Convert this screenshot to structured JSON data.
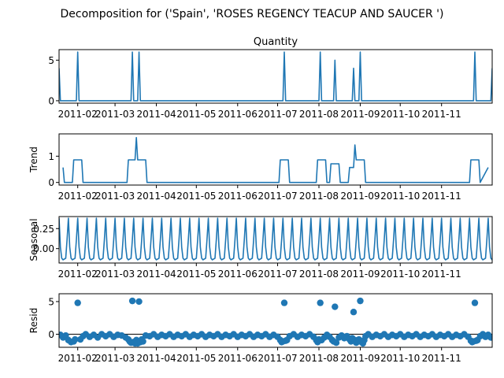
{
  "figure": {
    "suptitle": "Decomposition for ('Spain', 'ROSES REGENCY TEACUP AND SAUCER ')",
    "line_color": "#1f77b4",
    "x_tick_labels": [
      "2011-02",
      "2011-03",
      "2011-04",
      "2011-05",
      "2011-06",
      "2011-07",
      "2011-08",
      "2011-09",
      "2011-10",
      "2011-11"
    ],
    "x_tick_dates": [
      "2011-02-01",
      "2011-03-01",
      "2011-04-01",
      "2011-05-01",
      "2011-06-01",
      "2011-07-01",
      "2011-08-01",
      "2011-09-01",
      "2011-10-01",
      "2011-11-01"
    ],
    "x_range": [
      "2011-01-18",
      "2011-12-09"
    ]
  },
  "chart_data": [
    {
      "type": "line",
      "title": "Quantity",
      "ylabel": "",
      "ylim": [
        -0.3,
        6.3
      ],
      "yticks": [
        0,
        5
      ],
      "x_dates": [
        "2011-01-18",
        "2011-01-19",
        "2011-01-31",
        "2011-02-01",
        "2011-02-02",
        "2011-03-13",
        "2011-03-14",
        "2011-03-15",
        "2011-03-18",
        "2011-03-19",
        "2011-03-20",
        "2011-07-05",
        "2011-07-06",
        "2011-07-07",
        "2011-08-01",
        "2011-08-02",
        "2011-08-03",
        "2011-08-12",
        "2011-08-13",
        "2011-08-14",
        "2011-08-26",
        "2011-08-27",
        "2011-08-28",
        "2011-08-31",
        "2011-09-01",
        "2011-09-02",
        "2011-11-25",
        "2011-11-26",
        "2011-11-27",
        "2011-12-08",
        "2011-12-09"
      ],
      "values": [
        4,
        0,
        0,
        6,
        0,
        0,
        6,
        0,
        0,
        6,
        0,
        0,
        6,
        0,
        0,
        6,
        0,
        0,
        5,
        0,
        0,
        4,
        0,
        0,
        6,
        0,
        0,
        6,
        0,
        0,
        4
      ]
    },
    {
      "type": "line",
      "title": "",
      "ylabel": "Trend",
      "ylim": [
        -0.1,
        1.85
      ],
      "yticks": [
        0,
        1
      ],
      "x_dates": [
        "2011-01-21",
        "2011-01-22",
        "2011-01-28",
        "2011-01-29",
        "2011-02-04",
        "2011-02-05",
        "2011-03-10",
        "2011-03-11",
        "2011-03-16",
        "2011-03-17",
        "2011-03-18",
        "2011-03-19",
        "2011-03-24",
        "2011-03-25",
        "2011-07-02",
        "2011-07-03",
        "2011-07-09",
        "2011-07-10",
        "2011-07-30",
        "2011-07-31",
        "2011-08-06",
        "2011-08-07",
        "2011-08-09",
        "2011-08-10",
        "2011-08-16",
        "2011-08-17",
        "2011-08-23",
        "2011-08-24",
        "2011-08-27",
        "2011-08-28",
        "2011-08-29",
        "2011-08-30",
        "2011-09-04",
        "2011-09-05",
        "2011-11-22",
        "2011-11-23",
        "2011-11-29",
        "2011-11-30",
        "2011-12-06"
      ],
      "values": [
        0.57,
        0,
        0,
        0.86,
        0.86,
        0,
        0,
        0.86,
        0.86,
        1.71,
        0.86,
        0.86,
        0.86,
        0,
        0,
        0.86,
        0.86,
        0,
        0,
        0.86,
        0.86,
        0,
        0,
        0.71,
        0.71,
        0,
        0,
        0.57,
        0.57,
        1.43,
        0.86,
        0.86,
        0.86,
        0,
        0,
        0.86,
        0.86,
        0,
        0.57
      ]
    },
    {
      "type": "line",
      "title": "",
      "ylabel": "Seasonal",
      "ylim": [
        -0.18,
        0.4
      ],
      "yticks": [
        0,
        0.25
      ],
      "ytick_labels": [
        "0.00",
        "0.25"
      ],
      "period_days": 7,
      "x_start": "2011-01-18",
      "x_end": "2011-12-09",
      "pattern": [
        0.38,
        0.02,
        -0.12,
        -0.14,
        -0.13,
        -0.12,
        0.11
      ]
    },
    {
      "type": "scatter",
      "title": "",
      "ylabel": "Resid",
      "ylim": [
        -2.0,
        6.2
      ],
      "yticks": [
        0,
        5
      ],
      "baseline": 0,
      "points": [
        [
          "2011-01-19",
          -0.1
        ],
        [
          "2011-01-21",
          -0.5
        ],
        [
          "2011-01-23",
          -0.2
        ],
        [
          "2011-01-25",
          -0.9
        ],
        [
          "2011-01-27",
          -1.2
        ],
        [
          "2011-01-29",
          -1.1
        ],
        [
          "2011-01-30",
          -0.8
        ],
        [
          "2011-02-01",
          4.8
        ],
        [
          "2011-02-03",
          -0.8
        ],
        [
          "2011-02-05",
          -0.3
        ],
        [
          "2011-02-07",
          0.0
        ],
        [
          "2011-02-10",
          -0.4
        ],
        [
          "2011-02-13",
          -0.1
        ],
        [
          "2011-02-16",
          -0.5
        ],
        [
          "2011-02-19",
          0.0
        ],
        [
          "2011-02-22",
          -0.3
        ],
        [
          "2011-02-25",
          0.0
        ],
        [
          "2011-02-28",
          -0.4
        ],
        [
          "2011-03-03",
          -0.1
        ],
        [
          "2011-03-06",
          -0.2
        ],
        [
          "2011-03-09",
          -0.5
        ],
        [
          "2011-03-11",
          -0.8
        ],
        [
          "2011-03-12",
          -1.1
        ],
        [
          "2011-03-13",
          -1.3
        ],
        [
          "2011-03-14",
          5.1
        ],
        [
          "2011-03-15",
          -1.2
        ],
        [
          "2011-03-16",
          -1.4
        ],
        [
          "2011-03-17",
          -0.9
        ],
        [
          "2011-03-18",
          -1.4
        ],
        [
          "2011-03-19",
          5.0
        ],
        [
          "2011-03-20",
          -1.2
        ],
        [
          "2011-03-21",
          -0.8
        ],
        [
          "2011-03-22",
          -1.1
        ],
        [
          "2011-03-24",
          -0.2
        ],
        [
          "2011-03-27",
          -0.3
        ],
        [
          "2011-03-30",
          0.0
        ],
        [
          "2011-04-02",
          -0.4
        ],
        [
          "2011-04-05",
          -0.1
        ],
        [
          "2011-04-08",
          -0.3
        ],
        [
          "2011-04-11",
          0.0
        ],
        [
          "2011-04-14",
          -0.4
        ],
        [
          "2011-04-17",
          -0.1
        ],
        [
          "2011-04-20",
          -0.3
        ],
        [
          "2011-04-23",
          0.0
        ],
        [
          "2011-04-26",
          -0.4
        ],
        [
          "2011-04-29",
          -0.1
        ],
        [
          "2011-05-02",
          -0.3
        ],
        [
          "2011-05-05",
          0.0
        ],
        [
          "2011-05-08",
          -0.4
        ],
        [
          "2011-05-11",
          -0.1
        ],
        [
          "2011-05-14",
          -0.3
        ],
        [
          "2011-05-17",
          0.0
        ],
        [
          "2011-05-20",
          -0.4
        ],
        [
          "2011-05-23",
          -0.1
        ],
        [
          "2011-05-26",
          -0.3
        ],
        [
          "2011-05-29",
          0.0
        ],
        [
          "2011-06-01",
          -0.4
        ],
        [
          "2011-06-04",
          -0.1
        ],
        [
          "2011-06-07",
          -0.3
        ],
        [
          "2011-06-10",
          0.0
        ],
        [
          "2011-06-13",
          -0.4
        ],
        [
          "2011-06-16",
          -0.1
        ],
        [
          "2011-06-19",
          -0.3
        ],
        [
          "2011-06-22",
          0.0
        ],
        [
          "2011-06-25",
          -0.4
        ],
        [
          "2011-06-28",
          -0.1
        ],
        [
          "2011-07-01",
          -0.4
        ],
        [
          "2011-07-03",
          -0.9
        ],
        [
          "2011-07-04",
          -1.2
        ],
        [
          "2011-07-05",
          -1.1
        ],
        [
          "2011-07-06",
          4.8
        ],
        [
          "2011-07-07",
          -1.0
        ],
        [
          "2011-07-08",
          -0.9
        ],
        [
          "2011-07-10",
          -0.3
        ],
        [
          "2011-07-13",
          0.0
        ],
        [
          "2011-07-16",
          -0.4
        ],
        [
          "2011-07-19",
          -0.1
        ],
        [
          "2011-07-22",
          -0.3
        ],
        [
          "2011-07-25",
          0.0
        ],
        [
          "2011-07-28",
          -0.4
        ],
        [
          "2011-07-30",
          -0.9
        ],
        [
          "2011-07-31",
          -1.2
        ],
        [
          "2011-08-01",
          -0.8
        ],
        [
          "2011-08-02",
          4.8
        ],
        [
          "2011-08-03",
          -0.9
        ],
        [
          "2011-08-05",
          -0.5
        ],
        [
          "2011-08-07",
          -0.1
        ],
        [
          "2011-08-09",
          -0.4
        ],
        [
          "2011-08-11",
          -0.9
        ],
        [
          "2011-08-12",
          -1.1
        ],
        [
          "2011-08-13",
          4.2
        ],
        [
          "2011-08-14",
          -1.3
        ],
        [
          "2011-08-16",
          -0.5
        ],
        [
          "2011-08-18",
          -0.2
        ],
        [
          "2011-08-20",
          -0.6
        ],
        [
          "2011-08-22",
          -0.3
        ],
        [
          "2011-08-24",
          -0.8
        ],
        [
          "2011-08-25",
          -1.1
        ],
        [
          "2011-08-26",
          -0.6
        ],
        [
          "2011-08-27",
          3.4
        ],
        [
          "2011-08-28",
          -0.9
        ],
        [
          "2011-08-29",
          -1.3
        ],
        [
          "2011-08-30",
          -1.1
        ],
        [
          "2011-08-31",
          -0.8
        ],
        [
          "2011-09-01",
          5.1
        ],
        [
          "2011-09-02",
          -1.2
        ],
        [
          "2011-09-03",
          -1.4
        ],
        [
          "2011-09-04",
          -0.9
        ],
        [
          "2011-09-05",
          -0.3
        ],
        [
          "2011-09-07",
          0.0
        ],
        [
          "2011-09-10",
          -0.4
        ],
        [
          "2011-09-13",
          -0.1
        ],
        [
          "2011-09-16",
          -0.3
        ],
        [
          "2011-09-19",
          0.0
        ],
        [
          "2011-09-22",
          -0.4
        ],
        [
          "2011-09-25",
          -0.1
        ],
        [
          "2011-09-28",
          -0.3
        ],
        [
          "2011-10-01",
          0.0
        ],
        [
          "2011-10-04",
          -0.4
        ],
        [
          "2011-10-07",
          -0.1
        ],
        [
          "2011-10-10",
          -0.3
        ],
        [
          "2011-10-13",
          0.0
        ],
        [
          "2011-10-16",
          -0.4
        ],
        [
          "2011-10-19",
          -0.1
        ],
        [
          "2011-10-22",
          -0.3
        ],
        [
          "2011-10-25",
          0.0
        ],
        [
          "2011-10-28",
          -0.4
        ],
        [
          "2011-10-31",
          -0.1
        ],
        [
          "2011-11-03",
          -0.3
        ],
        [
          "2011-11-06",
          0.0
        ],
        [
          "2011-11-09",
          -0.4
        ],
        [
          "2011-11-12",
          -0.1
        ],
        [
          "2011-11-15",
          -0.3
        ],
        [
          "2011-11-18",
          0.0
        ],
        [
          "2011-11-21",
          -0.4
        ],
        [
          "2011-11-23",
          -1.0
        ],
        [
          "2011-11-24",
          -1.2
        ],
        [
          "2011-11-25",
          -1.1
        ],
        [
          "2011-11-26",
          4.8
        ],
        [
          "2011-11-27",
          -1.0
        ],
        [
          "2011-11-28",
          -0.9
        ],
        [
          "2011-11-30",
          -0.3
        ],
        [
          "2011-12-02",
          0.0
        ],
        [
          "2011-12-04",
          -0.4
        ],
        [
          "2011-12-06",
          -0.1
        ],
        [
          "2011-12-08",
          -0.5
        ]
      ]
    }
  ]
}
